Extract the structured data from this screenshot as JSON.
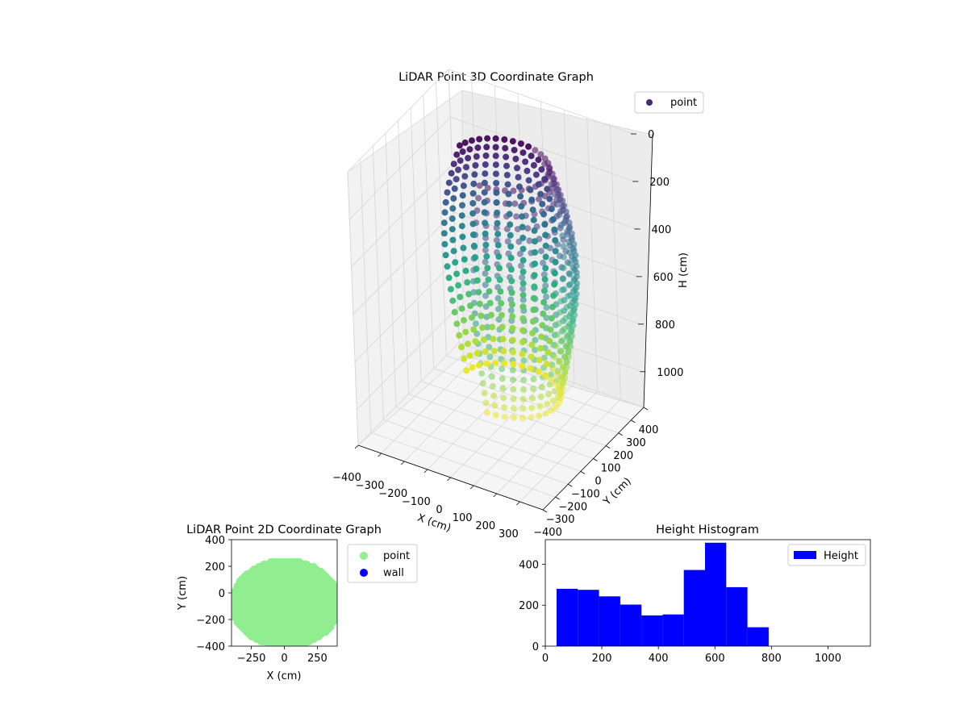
{
  "chart_data": [
    {
      "type": "scatter",
      "projection": "3d",
      "title": "LiDAR Point 3D Coordinate Graph",
      "xlabel": "X (cm)",
      "ylabel": "Y (cm)",
      "zlabel": "H (cm)",
      "xlim": [
        -400,
        400
      ],
      "ylim": [
        -400,
        400
      ],
      "zlim": [
        1150,
        0
      ],
      "z_inverted": true,
      "xticks": [
        "−400",
        "−300",
        "−200",
        "−100",
        "0",
        "100",
        "200",
        "300"
      ],
      "yticks": [
        "−400",
        "−300",
        "−200",
        "−100",
        "0",
        "100",
        "200",
        "300",
        "400"
      ],
      "zticks": [
        "0",
        "200",
        "400",
        "600",
        "800",
        "1000"
      ],
      "colormap": "viridis",
      "color_by": "height",
      "legend": {
        "labels": [
          "point"
        ],
        "placement": "upper-right"
      },
      "series": [
        {
          "name": "point",
          "marker_color": "#482878",
          "shape": "dome wall around origin",
          "radius_cm": 330,
          "h_range": [
            50,
            1000
          ],
          "azimuth_steps": 36,
          "elevation_steps": 22
        }
      ]
    },
    {
      "type": "scatter",
      "title": "LiDAR Point 2D Coordinate Graph",
      "xlabel": "X (cm)",
      "ylabel": "Y (cm)",
      "xlim": [
        -400,
        400
      ],
      "ylim": [
        -400,
        400
      ],
      "xticks": [
        "−250",
        "0",
        "250"
      ],
      "yticks": [
        "400",
        "200",
        "0",
        "−200",
        "−400"
      ],
      "legend": {
        "labels": [
          "point",
          "wall"
        ],
        "placement": "outside-right"
      },
      "series": [
        {
          "name": "point",
          "color": "#90ee90",
          "extent": "filled region, x from −390 to 400, y from −400 to 230"
        },
        {
          "name": "wall",
          "color": "#0000ff",
          "points": []
        }
      ]
    },
    {
      "type": "bar",
      "title": "Height Histogram",
      "xlabel": "",
      "ylabel": "",
      "xlim": [
        0,
        1150
      ],
      "ylim": [
        0,
        520
      ],
      "xticks": [
        "0",
        "200",
        "400",
        "600",
        "800",
        "1000"
      ],
      "yticks": [
        "0",
        "200",
        "400"
      ],
      "bin_edges": [
        40,
        115,
        190,
        265,
        340,
        415,
        490,
        565,
        640,
        715,
        790,
        865,
        940,
        1015,
        1090
      ],
      "counts": [
        280,
        275,
        243,
        203,
        150,
        155,
        372,
        505,
        288,
        92,
        0,
        0,
        0,
        0
      ],
      "bar_color": "#0000ff",
      "legend": {
        "labels": [
          "Height"
        ],
        "placement": "upper-right"
      }
    }
  ]
}
